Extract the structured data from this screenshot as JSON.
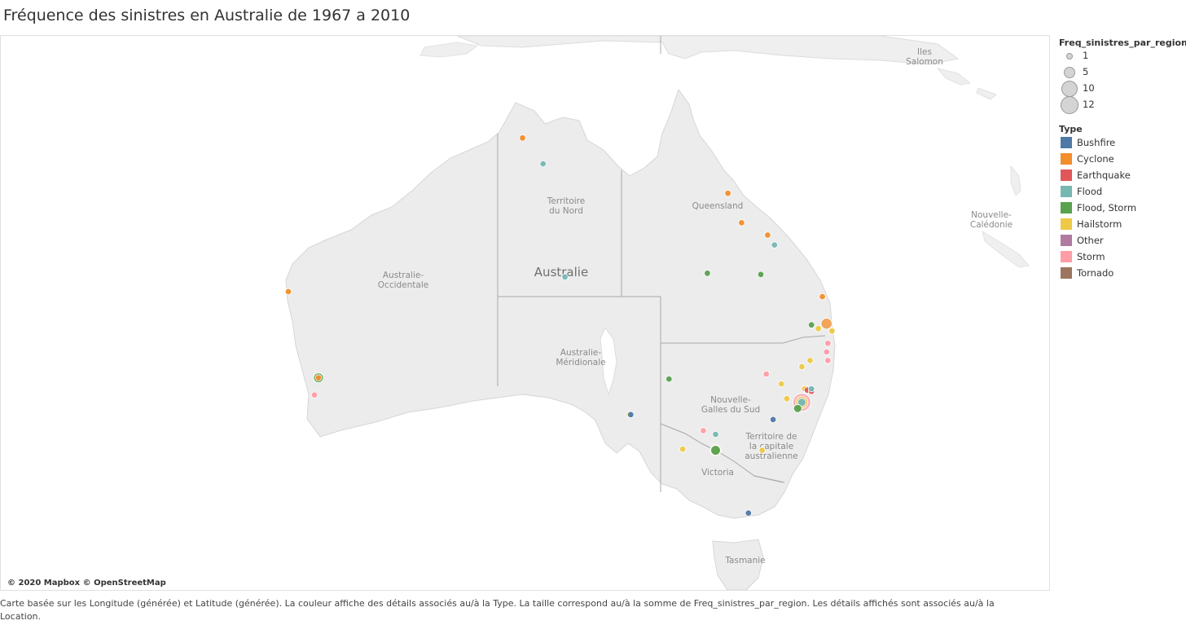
{
  "title": "Fréquence des sinistres en Australie de 1967 a 2010",
  "attribution": "© 2020 Mapbox © OpenStreetMap",
  "caption": "Carte basée sur les Longitude (générée) et Latitude (générée).  La couleur affiche des détails associés au/à la Type.  La taille correspond au/à la somme de Freq_sinistres_par_region.  Les détails affichés sont associés au/à la Location.",
  "legend": {
    "size_title": "Freq_sinistres_par_region",
    "sizes": [
      {
        "label": "1",
        "value": 1
      },
      {
        "label": "5",
        "value": 5
      },
      {
        "label": "10",
        "value": 10
      },
      {
        "label": "12",
        "value": 12
      }
    ],
    "type_title": "Type",
    "types": [
      {
        "label": "Bushfire",
        "color": "#4e79a7"
      },
      {
        "label": "Cyclone",
        "color": "#f28e2b"
      },
      {
        "label": "Earthquake",
        "color": "#e15759"
      },
      {
        "label": "Flood",
        "color": "#76b7b2"
      },
      {
        "label": "Flood, Storm",
        "color": "#59a14f"
      },
      {
        "label": "Hailstorm",
        "color": "#edc948"
      },
      {
        "label": "Other",
        "color": "#b07aa1"
      },
      {
        "label": "Storm",
        "color": "#ff9da7"
      },
      {
        "label": "Tornado",
        "color": "#9c755f"
      }
    ]
  },
  "map": {
    "country_label": "Australie",
    "region_labels": [
      {
        "lines": [
          "Territoire",
          "du Nord"
        ]
      },
      {
        "lines": [
          "Queensland"
        ]
      },
      {
        "lines": [
          "Australie-",
          "Occidentale"
        ]
      },
      {
        "lines": [
          "Australie-",
          "Méridionale"
        ]
      },
      {
        "lines": [
          "Nouvelle-",
          "Galles du Sud"
        ]
      },
      {
        "lines": [
          "Territoire de",
          "la capitale",
          "australienne"
        ]
      },
      {
        "lines": [
          "Victoria"
        ]
      },
      {
        "lines": [
          "Tasmanie"
        ]
      },
      {
        "lines": [
          "Iles",
          "Salomon"
        ]
      },
      {
        "lines": [
          "Nouvelle-",
          "Calédonie"
        ]
      }
    ]
  },
  "chart_data": {
    "type": "scatter",
    "title": "Fréquence des sinistres en Australie de 1967 a 2010",
    "x_field": "Longitude (générée)",
    "y_field": "Latitude (générée)",
    "color_field": "Type",
    "size_field": "Freq_sinistres_par_region",
    "points": [
      {
        "lon": 130.8,
        "lat": -12.4,
        "type": "Cyclone",
        "freq": 1
      },
      {
        "lon": 132.3,
        "lat": -14.5,
        "type": "Flood",
        "freq": 1
      },
      {
        "lon": 133.9,
        "lat": -23.7,
        "type": "Flood",
        "freq": 1
      },
      {
        "lon": 113.7,
        "lat": -24.9,
        "type": "Cyclone",
        "freq": 1
      },
      {
        "lon": 115.9,
        "lat": -31.9,
        "type": "Flood, Storm",
        "freq": 3
      },
      {
        "lon": 115.9,
        "lat": -31.9,
        "type": "Cyclone",
        "freq": 1
      },
      {
        "lon": 115.6,
        "lat": -33.3,
        "type": "Storm",
        "freq": 1
      },
      {
        "lon": 145.8,
        "lat": -16.9,
        "type": "Cyclone",
        "freq": 1
      },
      {
        "lon": 146.8,
        "lat": -19.3,
        "type": "Cyclone",
        "freq": 1
      },
      {
        "lon": 148.7,
        "lat": -20.3,
        "type": "Cyclone",
        "freq": 1
      },
      {
        "lon": 149.2,
        "lat": -21.1,
        "type": "Flood",
        "freq": 1
      },
      {
        "lon": 144.3,
        "lat": -23.4,
        "type": "Flood, Storm",
        "freq": 1
      },
      {
        "lon": 148.2,
        "lat": -23.5,
        "type": "Flood, Storm",
        "freq": 1
      },
      {
        "lon": 152.7,
        "lat": -25.3,
        "type": "Cyclone",
        "freq": 1
      },
      {
        "lon": 151.9,
        "lat": -27.6,
        "type": "Flood, Storm",
        "freq": 1
      },
      {
        "lon": 152.4,
        "lat": -27.9,
        "type": "Hailstorm",
        "freq": 1
      },
      {
        "lon": 153.0,
        "lat": -27.5,
        "type": "Cyclone",
        "freq": 4
      },
      {
        "lon": 153.4,
        "lat": -28.1,
        "type": "Hailstorm",
        "freq": 1
      },
      {
        "lon": 153.1,
        "lat": -29.1,
        "type": "Storm",
        "freq": 1
      },
      {
        "lon": 153.0,
        "lat": -29.8,
        "type": "Storm",
        "freq": 1
      },
      {
        "lon": 153.1,
        "lat": -30.5,
        "type": "Storm",
        "freq": 1
      },
      {
        "lon": 151.8,
        "lat": -30.5,
        "type": "Hailstorm",
        "freq": 1
      },
      {
        "lon": 151.2,
        "lat": -31.0,
        "type": "Hailstorm",
        "freq": 1
      },
      {
        "lon": 148.6,
        "lat": -31.6,
        "type": "Storm",
        "freq": 1
      },
      {
        "lon": 149.7,
        "lat": -32.4,
        "type": "Hailstorm",
        "freq": 1
      },
      {
        "lon": 151.4,
        "lat": -32.8,
        "type": "Hailstorm",
        "freq": 1
      },
      {
        "lon": 151.6,
        "lat": -32.9,
        "type": "Earthquake",
        "freq": 1
      },
      {
        "lon": 151.9,
        "lat": -33.0,
        "type": "Earthquake",
        "freq": 1
      },
      {
        "lon": 151.9,
        "lat": -32.8,
        "type": "Flood",
        "freq": 1
      },
      {
        "lon": 150.1,
        "lat": -33.6,
        "type": "Hailstorm",
        "freq": 1
      },
      {
        "lon": 151.2,
        "lat": -33.9,
        "type": "Storm",
        "freq": 12
      },
      {
        "lon": 151.2,
        "lat": -33.9,
        "type": "Hailstorm",
        "freq": 5
      },
      {
        "lon": 151.2,
        "lat": -33.9,
        "type": "Flood",
        "freq": 2
      },
      {
        "lon": 150.9,
        "lat": -34.4,
        "type": "Flood, Storm",
        "freq": 2
      },
      {
        "lon": 149.1,
        "lat": -35.3,
        "type": "Bushfire",
        "freq": 1
      },
      {
        "lon": 141.5,
        "lat": -32.0,
        "type": "Flood, Storm",
        "freq": 1
      },
      {
        "lon": 138.6,
        "lat": -34.9,
        "type": "Hailstorm",
        "freq": 1
      },
      {
        "lon": 138.7,
        "lat": -34.9,
        "type": "Bushfire",
        "freq": 1
      },
      {
        "lon": 144.0,
        "lat": -36.2,
        "type": "Storm",
        "freq": 1
      },
      {
        "lon": 144.9,
        "lat": -36.5,
        "type": "Flood",
        "freq": 1
      },
      {
        "lon": 142.5,
        "lat": -37.7,
        "type": "Hailstorm",
        "freq": 1
      },
      {
        "lon": 144.9,
        "lat": -37.8,
        "type": "Hailstorm",
        "freq": 4
      },
      {
        "lon": 144.9,
        "lat": -37.8,
        "type": "Flood, Storm",
        "freq": 3
      },
      {
        "lon": 148.3,
        "lat": -37.8,
        "type": "Hailstorm",
        "freq": 1
      },
      {
        "lon": 147.3,
        "lat": -42.9,
        "type": "Bushfire",
        "freq": 1
      }
    ]
  }
}
